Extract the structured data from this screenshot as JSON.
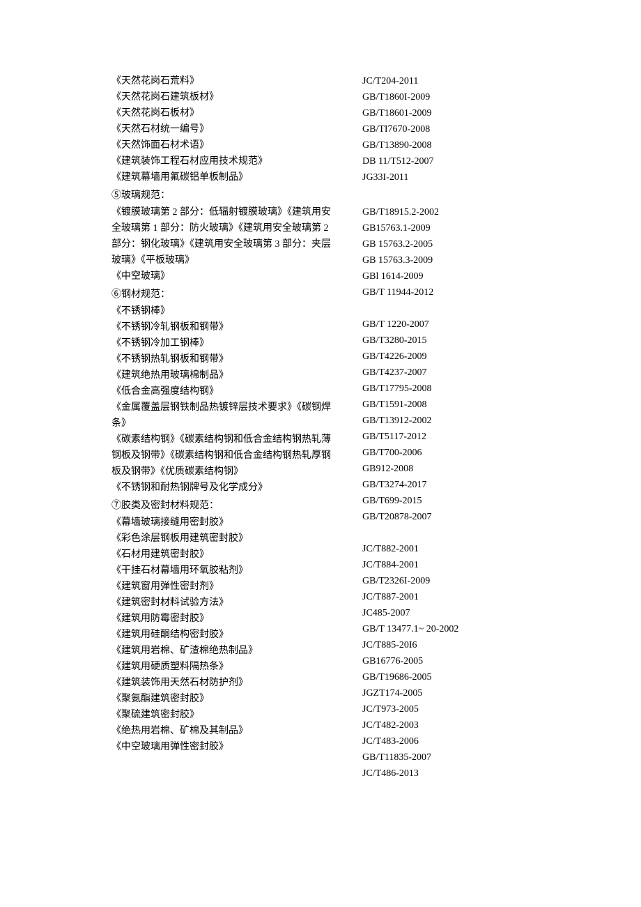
{
  "left": [
    {
      "t": "row",
      "v": "《天然花岗石荒料》"
    },
    {
      "t": "row",
      "v": "《天然花岗石建筑板材》"
    },
    {
      "t": "row",
      "v": "《天然花岗石板材》"
    },
    {
      "t": "row",
      "v": "《天然石材统一编号》"
    },
    {
      "t": "row",
      "v": "《天然饰面石材术语》"
    },
    {
      "t": "row",
      "v": "《建筑装饰工程石材应用技术规范》"
    },
    {
      "t": "row",
      "v": "《建筑幕墙用氟碳铝单板制品》"
    },
    {
      "t": "heading",
      "v": "⑤玻璃规范："
    },
    {
      "t": "row",
      "v": "《镀膜玻璃第 2 部分：低辐射镀膜玻璃》《建筑用安"
    },
    {
      "t": "row",
      "v": "全玻璃第 1 部分：防火玻璃》《建筑用安全玻璃第 2"
    },
    {
      "t": "row",
      "v": "部分：钢化玻璃》《建筑用安全玻璃第 3 部分：夹层"
    },
    {
      "t": "row",
      "v": "玻璃》《平板玻璃》"
    },
    {
      "t": "row",
      "v": "《中空玻璃》"
    },
    {
      "t": "heading",
      "v": "⑥钢材规范："
    },
    {
      "t": "row",
      "v": "《不锈钢棒》"
    },
    {
      "t": "row",
      "v": "《不锈钢冷轧钢板和钢带》"
    },
    {
      "t": "row",
      "v": "《不锈钢冷加工钢棒》"
    },
    {
      "t": "row",
      "v": "《不锈钢热轧钢板和钢带》"
    },
    {
      "t": "row",
      "v": "《建筑绝热用玻璃棉制品》"
    },
    {
      "t": "row",
      "v": "《低合金高强度结构钢》"
    },
    {
      "t": "row",
      "v": "《金属覆盖层钢铁制品热镀锌层技术要求》《碳钢焊"
    },
    {
      "t": "row",
      "v": "条》"
    },
    {
      "t": "row",
      "v": "《碳素结构钢》《碳素结构钢和低合金结构钢热轧薄"
    },
    {
      "t": "row",
      "v": "钢板及钢带》《碳素结构钢和低合金结构钢热轧厚钢"
    },
    {
      "t": "row",
      "v": "板及钢带》《优质碳素结构钢》"
    },
    {
      "t": "row",
      "v": "《不锈钢和耐热钢牌号及化学成分》"
    },
    {
      "t": "heading",
      "v": "⑦胶类及密封材料规范："
    },
    {
      "t": "row",
      "v": "《幕墙玻璃接缝用密封胶》"
    },
    {
      "t": "row",
      "v": "《彩色涂层钢板用建筑密封胶》"
    },
    {
      "t": "row",
      "v": "《石材用建筑密封胶》"
    },
    {
      "t": "row",
      "v": "《干挂石材幕墙用环氧胶粘剂》"
    },
    {
      "t": "row",
      "v": "《建筑窗用弹性密封剂》"
    },
    {
      "t": "row",
      "v": "《建筑密封材料试验方法》"
    },
    {
      "t": "row",
      "v": "《建筑用防霉密封胶》"
    },
    {
      "t": "row",
      "v": "《建筑用硅酮结构密封胶》"
    },
    {
      "t": "row",
      "v": "《建筑用岩棉、矿渣棉绝热制品》"
    },
    {
      "t": "row",
      "v": "《建筑用硬质塑料隔热条》"
    },
    {
      "t": "row",
      "v": "《建筑装饰用天然石材防护剂》"
    },
    {
      "t": "row",
      "v": "《聚氨酯建筑密封胶》"
    },
    {
      "t": "row",
      "v": "《聚硫建筑密封胶》"
    },
    {
      "t": "row",
      "v": "《绝热用岩棉、矿棉及其制品》"
    },
    {
      "t": "row",
      "v": "《中空玻璃用弹性密封胶》"
    }
  ],
  "right": [
    {
      "t": "row",
      "v": "JC/T204-2011"
    },
    {
      "t": "row",
      "v": "GB/T1860I-2009"
    },
    {
      "t": "row",
      "v": "GB/T18601-2009"
    },
    {
      "t": "row",
      "v": "GB/TI7670-2008"
    },
    {
      "t": "row",
      "v": "GB/T13890-2008"
    },
    {
      "t": "row",
      "v": "DB 11/T512-2007"
    },
    {
      "t": "row",
      "v": "JG33I-2011"
    },
    {
      "t": "heading",
      "v": ""
    },
    {
      "t": "row",
      "v": "GB/T18915.2-2002"
    },
    {
      "t": "row",
      "v": "GB15763.1-2009"
    },
    {
      "t": "row",
      "v": "GB 15763.2-2005"
    },
    {
      "t": "row",
      "v": "GB 15763.3-2009"
    },
    {
      "t": "row",
      "v": "GBl 1614-2009"
    },
    {
      "t": "row",
      "v": "GB/T 11944-2012"
    },
    {
      "t": "spacer",
      "v": ""
    },
    {
      "t": "row",
      "v": "GB/T 1220-2007"
    },
    {
      "t": "row",
      "v": "GB/T3280-2015"
    },
    {
      "t": "row",
      "v": "GB/T4226-2009"
    },
    {
      "t": "row",
      "v": "GB/T4237-2007"
    },
    {
      "t": "row",
      "v": "GB/T17795-2008"
    },
    {
      "t": "row",
      "v": "GB/T1591-2008"
    },
    {
      "t": "row",
      "v": "GB/T13912-2002"
    },
    {
      "t": "row",
      "v": "GB/T5117-2012"
    },
    {
      "t": "row",
      "v": "GB/T700-2006"
    },
    {
      "t": "row",
      "v": "GB912-2008"
    },
    {
      "t": "row",
      "v": "GB/T3274-2017"
    },
    {
      "t": "row",
      "v": "GB/T699-2015"
    },
    {
      "t": "row",
      "v": "GB/T20878-2007"
    },
    {
      "t": "spacer",
      "v": ""
    },
    {
      "t": "row",
      "v": "JC/T882-2001"
    },
    {
      "t": "row",
      "v": "JC/T884-2001"
    },
    {
      "t": "row",
      "v": "GB/T2326I-2009"
    },
    {
      "t": "row",
      "v": "JC/T887-2001"
    },
    {
      "t": "row",
      "v": "JC485-2007"
    },
    {
      "t": "row",
      "v": "GB/T 13477.1~ 20-2002"
    },
    {
      "t": "row",
      "v": "JC/T885-20I6"
    },
    {
      "t": "row",
      "v": "GB16776-2005"
    },
    {
      "t": "row",
      "v": "GB/T19686-2005"
    },
    {
      "t": "row",
      "v": "JGZT174-2005"
    },
    {
      "t": "row",
      "v": "JC/T973-2005"
    },
    {
      "t": "row",
      "v": "JC/T482-2003"
    },
    {
      "t": "row",
      "v": "JC/T483-2006"
    },
    {
      "t": "row",
      "v": "GB/T11835-2007"
    },
    {
      "t": "row",
      "v": "JC/T486-2013"
    }
  ]
}
